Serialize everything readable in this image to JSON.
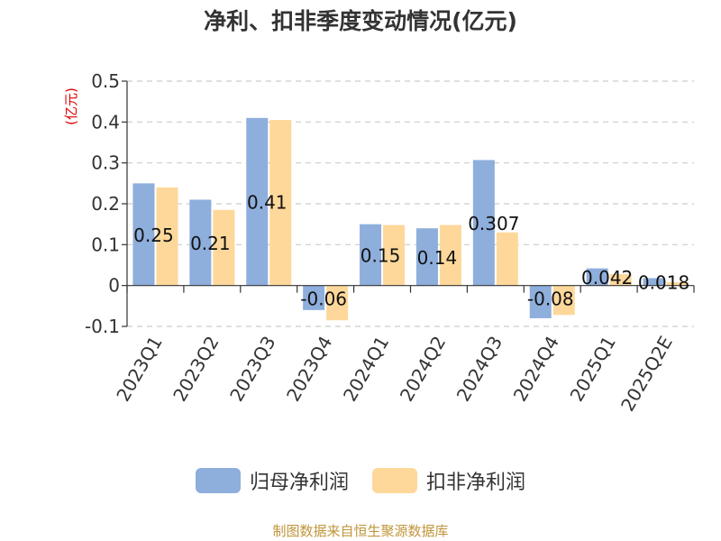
{
  "chart_data": {
    "type": "bar",
    "title": "净利、扣非季度变动情况(亿元)",
    "ylabel": "(亿元)",
    "xlabel": "",
    "categories": [
      "2023Q1",
      "2023Q2",
      "2023Q3",
      "2023Q4",
      "2024Q1",
      "2024Q2",
      "2024Q3",
      "2024Q4",
      "2025Q1",
      "2025Q2E"
    ],
    "series": [
      {
        "name": "归母净利润",
        "color": "#8eaedc",
        "values": [
          0.25,
          0.21,
          0.41,
          -0.06,
          0.15,
          0.14,
          0.307,
          -0.08,
          0.042,
          0.018
        ],
        "data_labels": [
          "0.25",
          "0.21",
          "0.41",
          "-0.06",
          "0.15",
          "0.14",
          "0.307",
          "-0.08",
          "0.042",
          "0.018"
        ]
      },
      {
        "name": "扣非净利润",
        "color": "#fed89a",
        "values": [
          0.24,
          0.185,
          0.405,
          -0.085,
          0.148,
          0.148,
          0.13,
          -0.072,
          0.028,
          0.008
        ]
      }
    ],
    "ylim": [
      -0.1,
      0.5
    ],
    "yticks": [
      -0.1,
      0,
      0.1,
      0.2,
      0.3,
      0.4,
      0.5
    ],
    "ytick_labels": [
      "-0.1",
      "0",
      "0.1",
      "0.2",
      "0.3",
      "0.4",
      "0.5"
    ],
    "grid": true,
    "legend_position": "bottom",
    "source_note": "制图数据来自恒生聚源数据库"
  }
}
